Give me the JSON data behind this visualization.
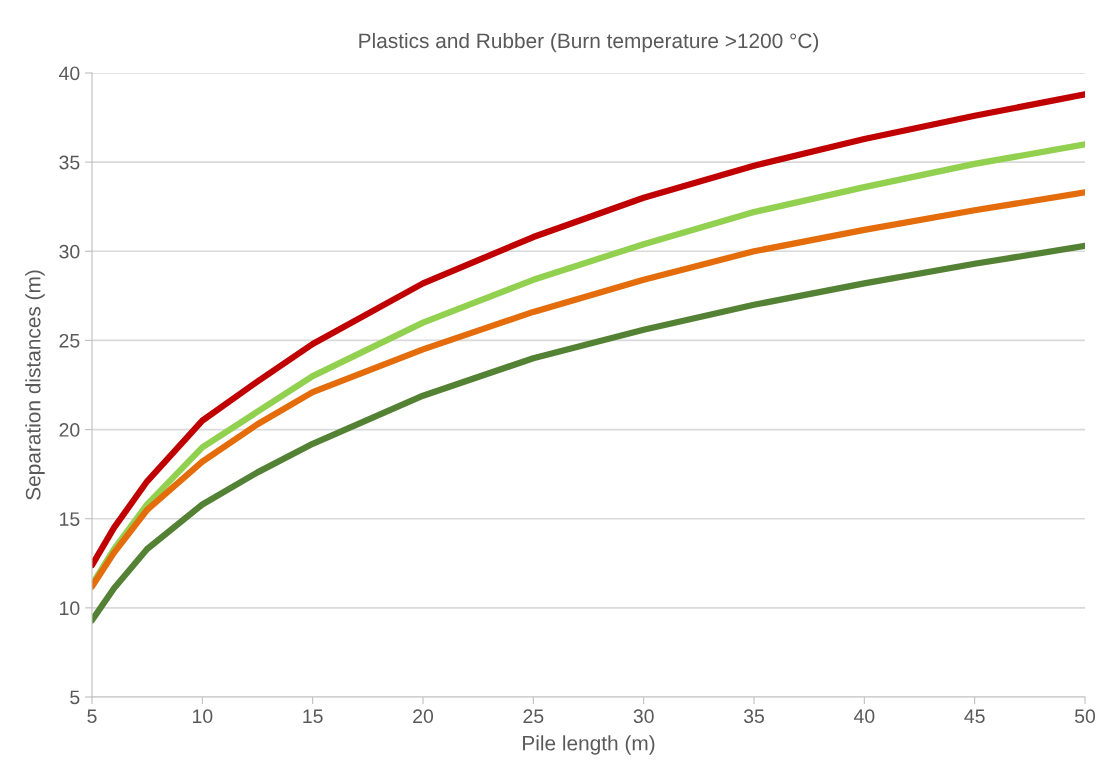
{
  "chart_data": {
    "type": "line",
    "title": "Plastics and Rubber (Burn temperature >1200 °C)",
    "xlabel": "Pile length (m)",
    "ylabel": "Separation distances (m)",
    "x": [
      5,
      6,
      7.5,
      10,
      12.5,
      15,
      20,
      25,
      30,
      35,
      40,
      45,
      50
    ],
    "series": [
      {
        "color": "#c00000",
        "values": [
          12.4,
          14.5,
          17.1,
          20.5,
          22.7,
          24.8,
          28.2,
          30.8,
          33.0,
          34.8,
          36.3,
          37.6,
          38.8
        ]
      },
      {
        "color": "#92d050",
        "values": [
          11.3,
          13.3,
          15.8,
          19.0,
          21.0,
          23.0,
          26.0,
          28.4,
          30.4,
          32.2,
          33.6,
          34.9,
          36.0
        ]
      },
      {
        "color": "#e46c0a",
        "values": [
          11.2,
          13.1,
          15.5,
          18.2,
          20.3,
          22.1,
          24.5,
          26.6,
          28.4,
          30.0,
          31.2,
          32.3,
          33.3
        ]
      },
      {
        "color": "#548235",
        "values": [
          9.3,
          11.1,
          13.3,
          15.8,
          17.6,
          19.2,
          21.9,
          24.0,
          25.6,
          27.0,
          28.2,
          29.3,
          30.3
        ]
      }
    ],
    "xlim": [
      5,
      50
    ],
    "xticks": [
      5,
      10,
      15,
      20,
      25,
      30,
      35,
      40,
      45,
      50
    ],
    "ylim": [
      5,
      40
    ],
    "yticks": [
      5,
      10,
      15,
      20,
      25,
      30,
      35,
      40
    ],
    "grid": "y",
    "marker": "none",
    "line_style": "solid"
  }
}
